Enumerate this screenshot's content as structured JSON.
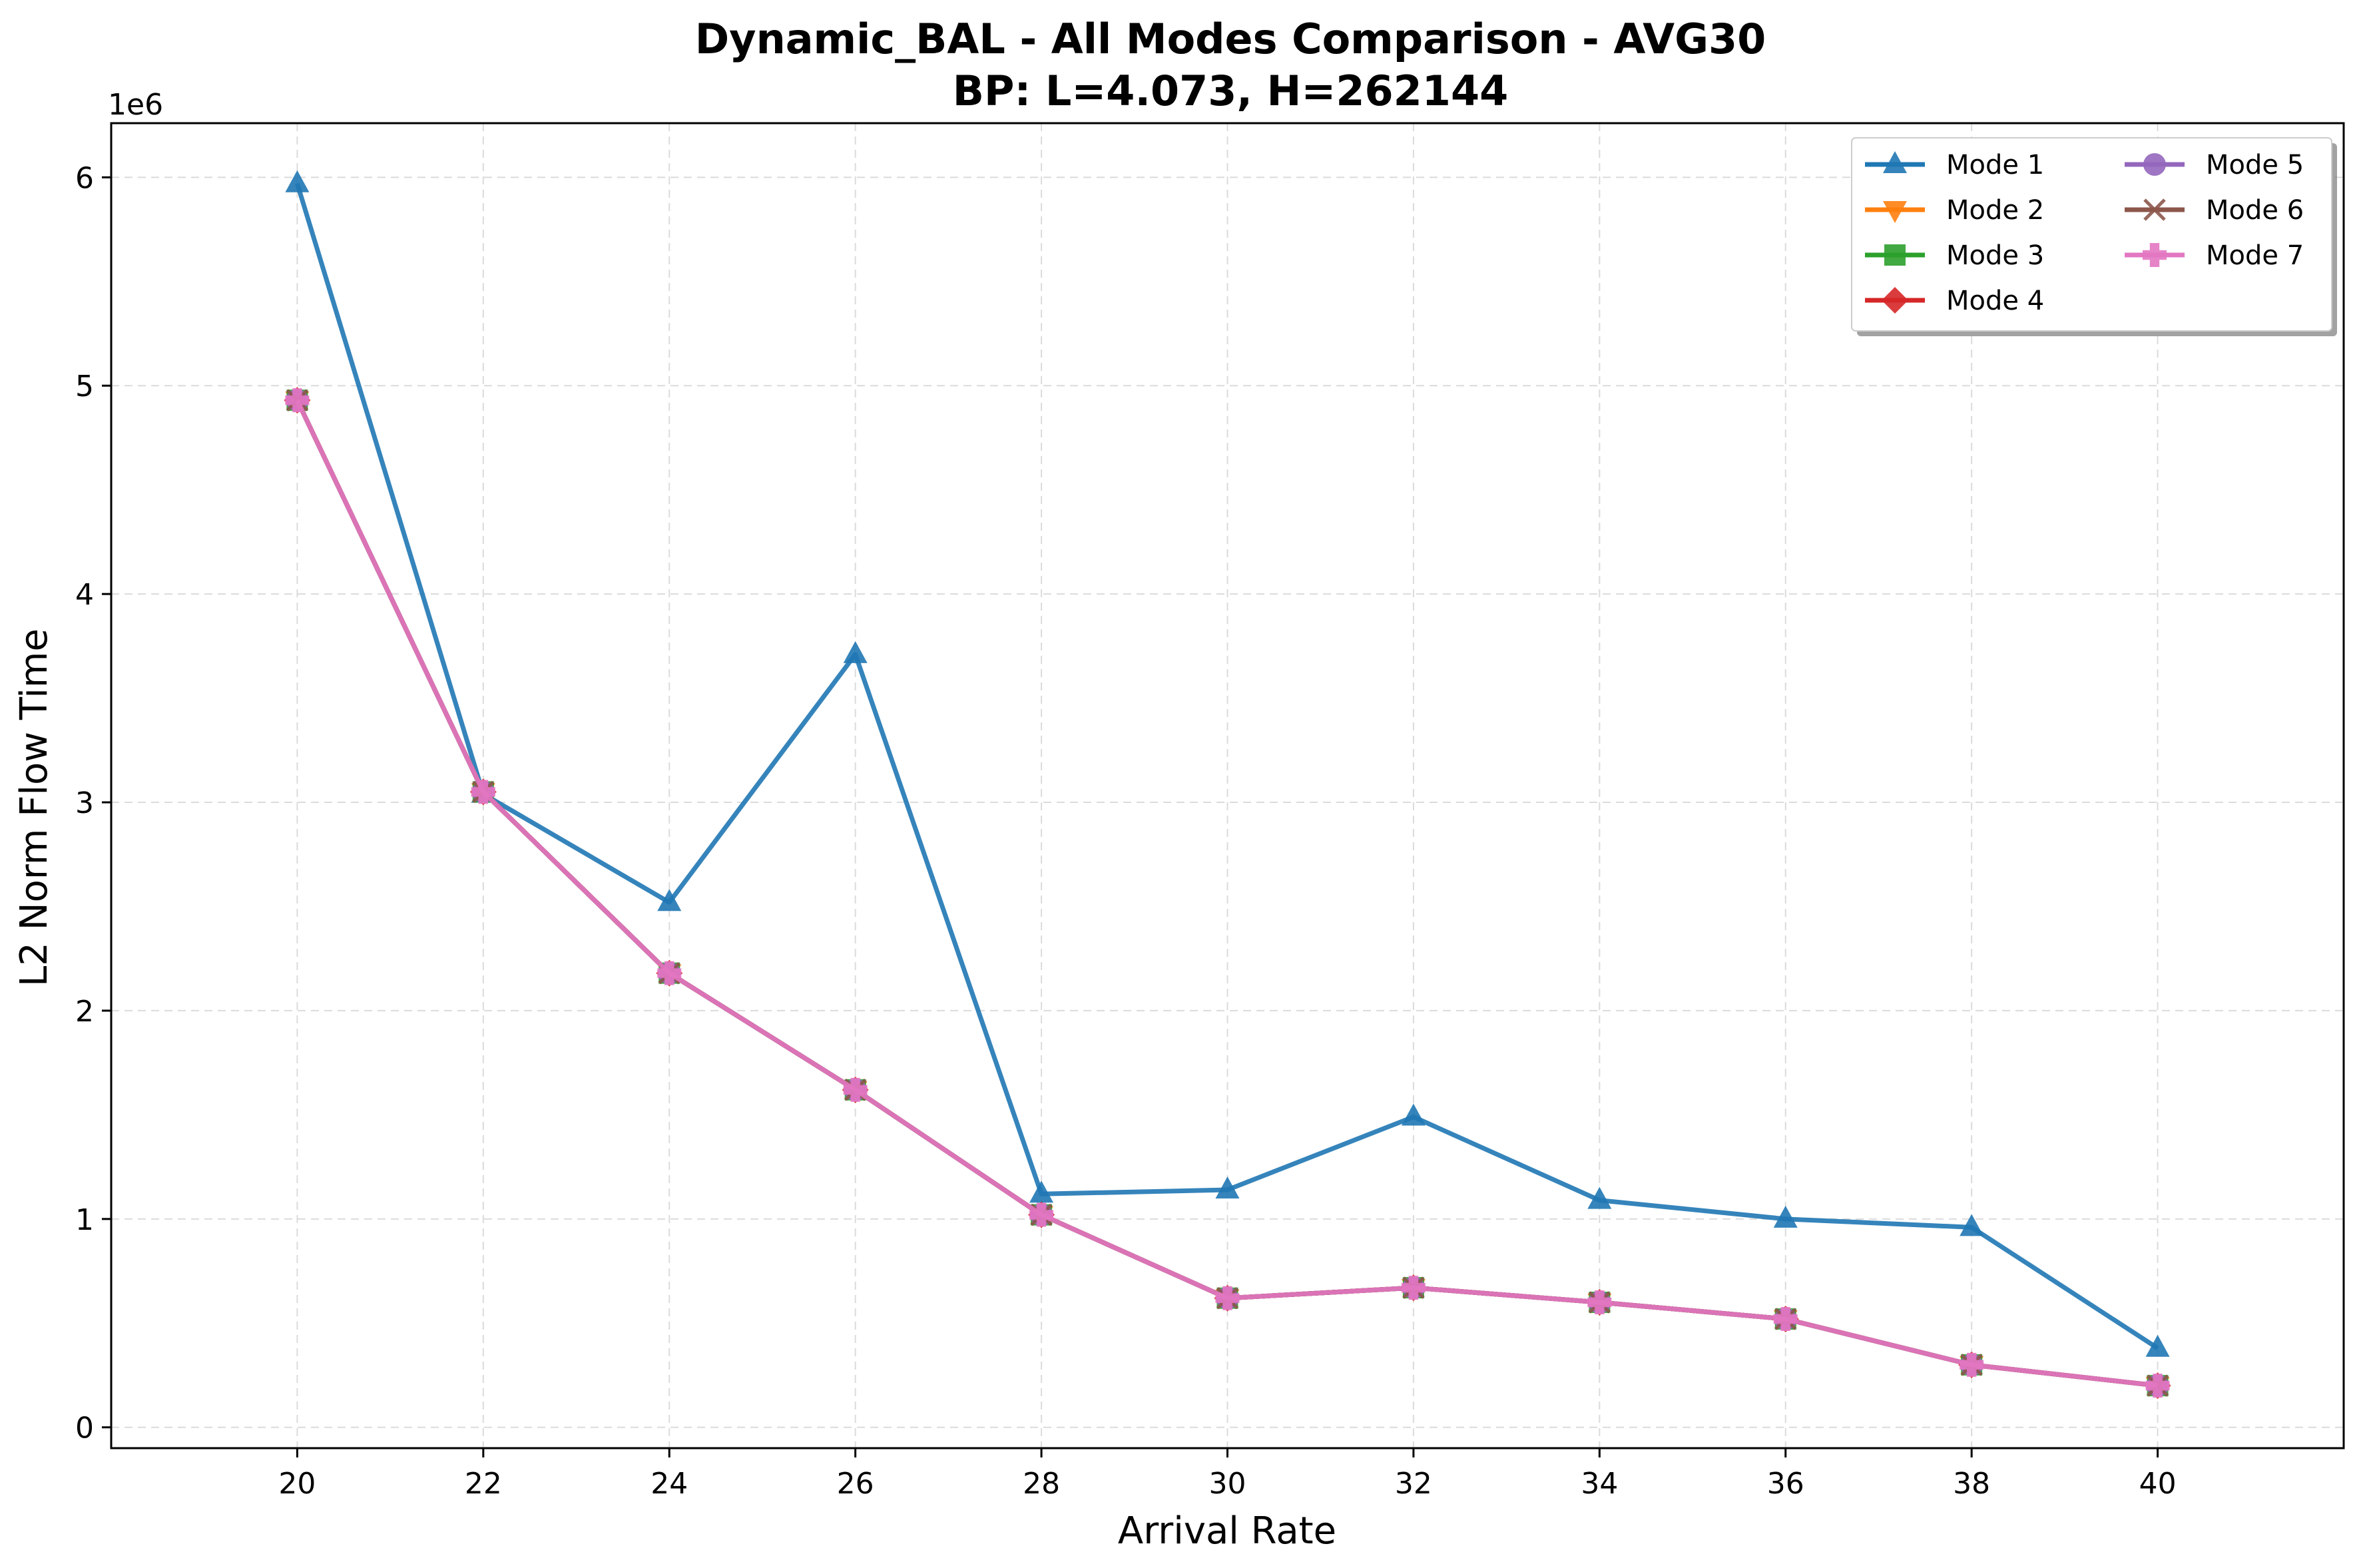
{
  "chart_data": {
    "type": "line",
    "title_lines": [
      "Dynamic_BAL - All Modes Comparison - AVG30",
      "BP: L=4.073, H=262144"
    ],
    "xlabel": "Arrival Rate",
    "ylabel": "L2 Norm Flow Time",
    "y_offset_text": "1e6",
    "x": [
      20,
      22,
      24,
      26,
      28,
      30,
      32,
      34,
      36,
      38,
      40
    ],
    "xticks": [
      "20",
      "22",
      "24",
      "26",
      "28",
      "30",
      "32",
      "34",
      "36",
      "38",
      "40"
    ],
    "yticks": [
      "0",
      "1",
      "2",
      "3",
      "4",
      "5",
      "6"
    ],
    "xlim": [
      18.0,
      42.0
    ],
    "ylim": [
      -0.1,
      6.26
    ],
    "y_scale_factor": 1000000,
    "grid": true,
    "legend_position": "top-right",
    "series": [
      {
        "name": "Mode 1",
        "color": "#1f77b4",
        "marker": "triangle-up",
        "values": [
          5.97,
          3.04,
          2.52,
          3.71,
          1.12,
          1.14,
          1.49,
          1.09,
          1.0,
          0.96,
          0.38
        ]
      },
      {
        "name": "Mode 2",
        "color": "#ff7f0e",
        "marker": "triangle-down",
        "values": [
          4.93,
          3.05,
          2.18,
          1.62,
          1.02,
          0.62,
          0.67,
          0.6,
          0.52,
          0.3,
          0.2
        ]
      },
      {
        "name": "Mode 3",
        "color": "#2ca02c",
        "marker": "square",
        "values": [
          4.93,
          3.05,
          2.18,
          1.62,
          1.02,
          0.62,
          0.67,
          0.6,
          0.52,
          0.3,
          0.2
        ]
      },
      {
        "name": "Mode 4",
        "color": "#d62728",
        "marker": "diamond",
        "values": [
          4.93,
          3.05,
          2.18,
          1.62,
          1.02,
          0.62,
          0.67,
          0.6,
          0.52,
          0.3,
          0.2
        ]
      },
      {
        "name": "Mode 5",
        "color": "#9467bd",
        "marker": "circle",
        "values": [
          4.93,
          3.05,
          2.18,
          1.62,
          1.02,
          0.62,
          0.67,
          0.6,
          0.52,
          0.3,
          0.2
        ]
      },
      {
        "name": "Mode 6",
        "color": "#8c564b",
        "marker": "x",
        "values": [
          4.93,
          3.05,
          2.18,
          1.62,
          1.02,
          0.62,
          0.67,
          0.6,
          0.52,
          0.3,
          0.2
        ]
      },
      {
        "name": "Mode 7",
        "color": "#e377c2",
        "marker": "plus-filled",
        "values": [
          4.93,
          3.05,
          2.18,
          1.62,
          1.02,
          0.62,
          0.67,
          0.6,
          0.52,
          0.3,
          0.2
        ]
      }
    ]
  }
}
